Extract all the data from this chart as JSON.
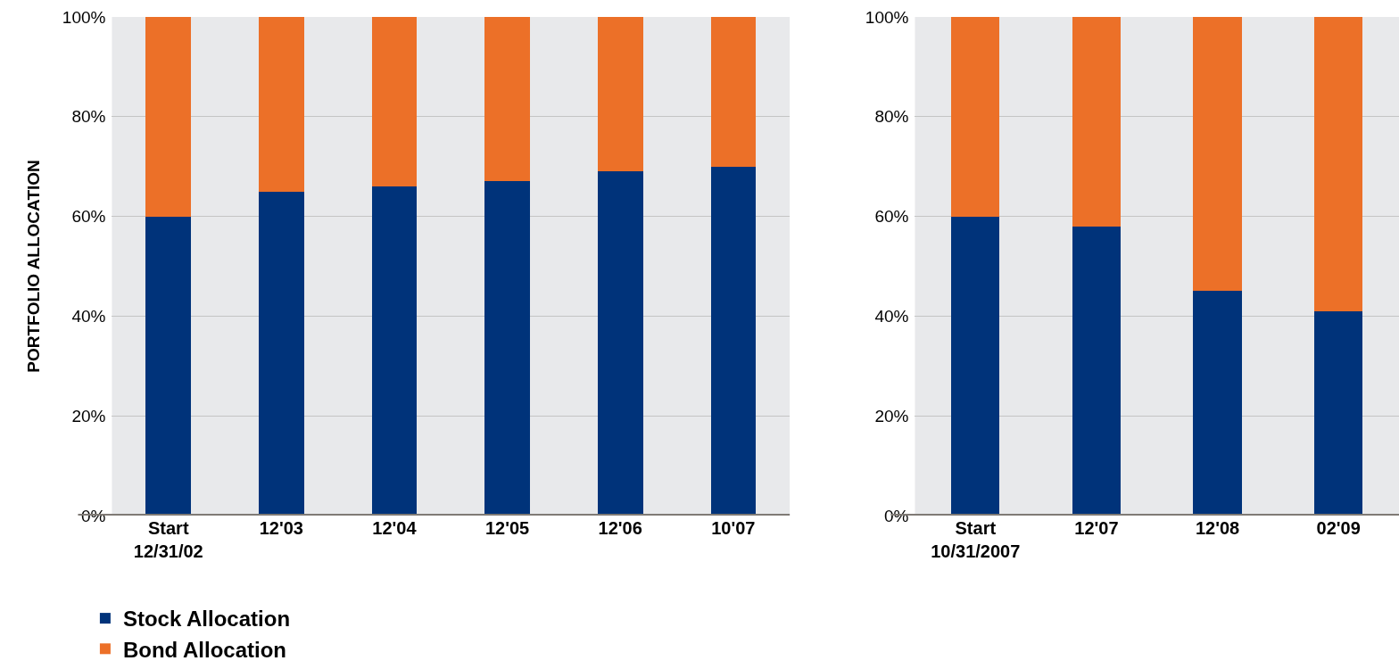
{
  "chart_data": [
    {
      "type": "bar",
      "stacked": true,
      "ylabel": "PORTFOLIO ALLOCATION",
      "categories": [
        "Start\n12/31/02",
        "12'03",
        "12'04",
        "12'05",
        "12'06",
        "10'07"
      ],
      "series": [
        {
          "name": "Stock Allocation",
          "color": "#00337a",
          "values": [
            60,
            65,
            66,
            67,
            69,
            70
          ]
        },
        {
          "name": "Bond Allocation",
          "color": "#ec7028",
          "values": [
            40,
            35,
            34,
            33,
            31,
            30
          ]
        }
      ],
      "ylim": [
        0,
        100
      ],
      "yticks": [
        {
          "value": 0,
          "label": "0%"
        },
        {
          "value": 20,
          "label": "20%"
        },
        {
          "value": 40,
          "label": "40%"
        },
        {
          "value": 60,
          "label": "60%"
        },
        {
          "value": 80,
          "label": "80%"
        },
        {
          "value": 100,
          "label": "100%"
        }
      ],
      "grid": "y",
      "legend": "bottom"
    },
    {
      "type": "bar",
      "stacked": true,
      "categories": [
        "Start\n10/31/2007",
        "12'07",
        "12'08",
        "02'09"
      ],
      "series": [
        {
          "name": "Stock Allocation",
          "color": "#00337a",
          "values": [
            60,
            58,
            45,
            41
          ]
        },
        {
          "name": "Bond Allocation",
          "color": "#ec7028",
          "values": [
            40,
            42,
            55,
            59
          ]
        }
      ],
      "ylim": [
        0,
        100
      ],
      "yticks": [
        {
          "value": 0,
          "label": "0%"
        },
        {
          "value": 20,
          "label": "20%"
        },
        {
          "value": 40,
          "label": "40%"
        },
        {
          "value": 60,
          "label": "60%"
        },
        {
          "value": 80,
          "label": "80%"
        },
        {
          "value": 100,
          "label": "100%"
        }
      ],
      "grid": "y",
      "legend": "bottom"
    }
  ]
}
